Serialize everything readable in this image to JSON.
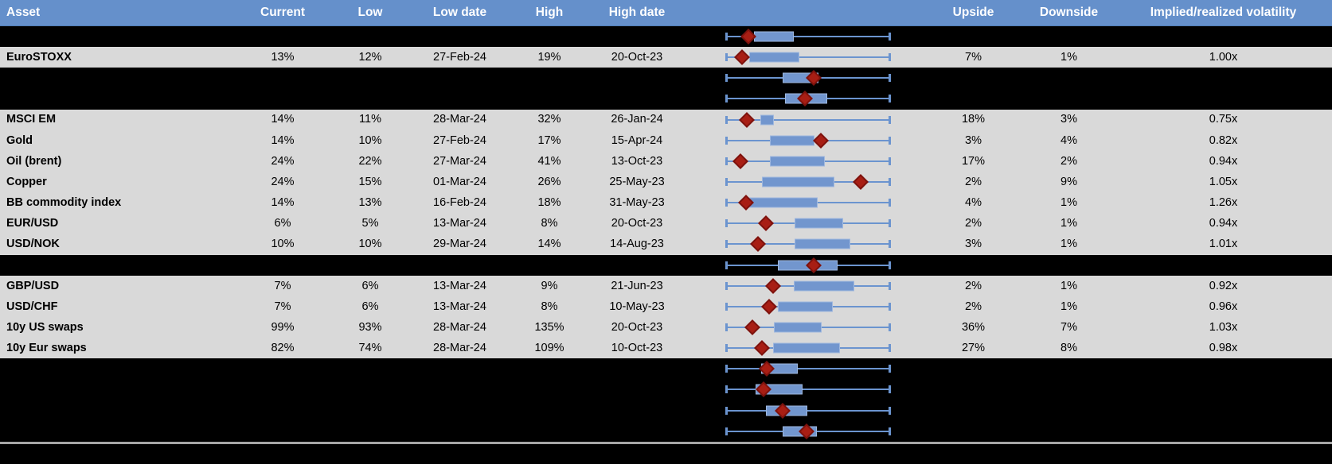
{
  "colors": {
    "header_bg": "#6590CB",
    "header_text": "#FFFFFF",
    "data_row_bg": "#D9D9D9",
    "spacer_row_bg": "#000000",
    "box_blue": "#7296CE",
    "whisker_blue": "#6B94CF",
    "diamond_red": "#A81E14",
    "divider_gray": "#A6A6A6"
  },
  "table": {
    "headers": {
      "asset": "Asset",
      "current": "Current",
      "low": "Low",
      "low_date": "Low date",
      "high": "High",
      "high_date": "High date",
      "upside": "Upside",
      "downside": "Downside",
      "vol": "Implied/realized volatility"
    },
    "rows": [
      {
        "type": "spacer",
        "boxplot": {
          "box_start": 0.168,
          "box_end": 0.411,
          "diamond": 0.136
        }
      },
      {
        "type": "data",
        "asset": "EuroSTOXX",
        "current": "13%",
        "low": "12%",
        "low_date": "27-Feb-24",
        "high": "19%",
        "high_date": "20-Oct-23",
        "upside": "7%",
        "downside": "1%",
        "vol": "1.00x",
        "boxplot": {
          "box_start": 0.139,
          "box_end": 0.448,
          "diamond": 0.099
        }
      },
      {
        "type": "spacer",
        "boxplot": {
          "box_start": 0.346,
          "box_end": 0.562,
          "diamond": 0.534
        }
      },
      {
        "type": "spacer",
        "boxplot": {
          "box_start": 0.358,
          "box_end": 0.618,
          "diamond": 0.482
        }
      },
      {
        "type": "data",
        "asset": "MSCI EM",
        "current": "14%",
        "low": "11%",
        "low_date": "28-Mar-24",
        "high": "32%",
        "high_date": "26-Jan-24",
        "upside": "18%",
        "downside": "3%",
        "vol": "0.75x",
        "boxplot": {
          "box_start": 0.209,
          "box_end": 0.293,
          "diamond": 0.125
        }
      },
      {
        "type": "data",
        "asset": "Gold",
        "current": "14%",
        "low": "10%",
        "low_date": "27-Feb-24",
        "high": "17%",
        "high_date": "15-Apr-24",
        "upside": "3%",
        "downside": "4%",
        "vol": "0.82x",
        "boxplot": {
          "box_start": 0.265,
          "box_end": 0.54,
          "diamond": 0.576
        }
      },
      {
        "type": "data",
        "asset": "Oil (brent)",
        "current": "24%",
        "low": "22%",
        "low_date": "27-Mar-24",
        "high": "41%",
        "high_date": "13-Oct-23",
        "upside": "17%",
        "downside": "2%",
        "vol": "0.94x",
        "boxplot": {
          "box_start": 0.265,
          "box_end": 0.602,
          "diamond": 0.087
        }
      },
      {
        "type": "data",
        "asset": "Copper",
        "current": "24%",
        "low": "15%",
        "low_date": "01-Mar-24",
        "high": "26%",
        "high_date": "25-May-23",
        "upside": "2%",
        "downside": "9%",
        "vol": "1.05x",
        "boxplot": {
          "box_start": 0.22,
          "box_end": 0.662,
          "diamond": 0.82
        }
      },
      {
        "type": "data",
        "asset": "BB commodity index",
        "current": "14%",
        "low": "13%",
        "low_date": "16-Feb-24",
        "high": "18%",
        "high_date": "31-May-23",
        "upside": "4%",
        "downside": "1%",
        "vol": "1.26x",
        "boxplot": {
          "box_start": 0.133,
          "box_end": 0.557,
          "diamond": 0.123
        }
      },
      {
        "type": "data",
        "asset": "EUR/USD",
        "current": "6%",
        "low": "5%",
        "low_date": "13-Mar-24",
        "high": "8%",
        "high_date": "20-Oct-23",
        "upside": "2%",
        "downside": "1%",
        "vol": "0.94x",
        "boxplot": {
          "box_start": 0.419,
          "box_end": 0.715,
          "diamond": 0.241
        }
      },
      {
        "type": "data",
        "asset": "USD/NOK",
        "current": "10%",
        "low": "10%",
        "low_date": "29-Mar-24",
        "high": "14%",
        "high_date": "14-Aug-23",
        "upside": "3%",
        "downside": "1%",
        "vol": "1.01x",
        "boxplot": {
          "box_start": 0.416,
          "box_end": 0.759,
          "diamond": 0.193
        }
      },
      {
        "type": "spacer",
        "boxplot": {
          "box_start": 0.314,
          "box_end": 0.678,
          "diamond": 0.533
        }
      },
      {
        "type": "data",
        "asset": "GBP/USD",
        "current": "7%",
        "low": "6%",
        "low_date": "13-Mar-24",
        "high": "9%",
        "high_date": "21-Jun-23",
        "upside": "2%",
        "downside": "1%",
        "vol": "0.92x",
        "boxplot": {
          "box_start": 0.411,
          "box_end": 0.783,
          "diamond": 0.285
        }
      },
      {
        "type": "data",
        "asset": "USD/CHF",
        "current": "7%",
        "low": "6%",
        "low_date": "13-Mar-24",
        "high": "8%",
        "high_date": "10-May-23",
        "upside": "2%",
        "downside": "1%",
        "vol": "0.96x",
        "boxplot": {
          "box_start": 0.317,
          "box_end": 0.649,
          "diamond": 0.261
        }
      },
      {
        "type": "data",
        "asset": "10y US swaps",
        "current": "99%",
        "low": "93%",
        "low_date": "28-Mar-24",
        "high": "135%",
        "high_date": "20-Oct-23",
        "upside": "36%",
        "downside": "7%",
        "vol": "1.03x",
        "boxplot": {
          "box_start": 0.293,
          "box_end": 0.584,
          "diamond": 0.16
        }
      },
      {
        "type": "data",
        "asset": "10y Eur swaps",
        "current": "82%",
        "low": "74%",
        "low_date": "28-Mar-24",
        "high": "109%",
        "high_date": "10-Oct-23",
        "upside": "27%",
        "downside": "8%",
        "vol": "0.98x",
        "boxplot": {
          "box_start": 0.286,
          "box_end": 0.696,
          "diamond": 0.22
        }
      },
      {
        "type": "spacer",
        "boxplot": {
          "box_start": 0.214,
          "box_end": 0.438,
          "diamond": 0.246
        }
      },
      {
        "type": "spacer",
        "boxplot": {
          "box_start": 0.181,
          "box_end": 0.464,
          "diamond": 0.228
        }
      },
      {
        "type": "spacer",
        "boxplot": {
          "box_start": 0.241,
          "box_end": 0.495,
          "diamond": 0.343
        }
      },
      {
        "type": "spacer",
        "boxplot": {
          "box_start": 0.346,
          "box_end": 0.552,
          "diamond": 0.492
        }
      }
    ]
  }
}
